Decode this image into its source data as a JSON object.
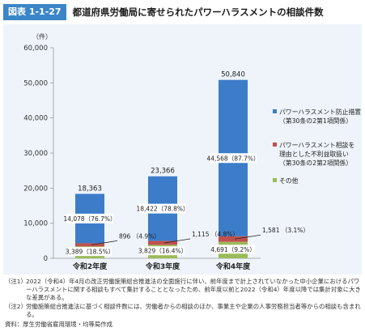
{
  "figure": {
    "label": "図表 1-1-27",
    "title": "都道府県労働局に寄せられたパワーハラスメントの相談件数"
  },
  "colors": {
    "header_accent": "#3a86c8",
    "panel_bg": "#eef4fa",
    "blue": "#3d7cc9",
    "red": "#c0504d",
    "green": "#9bbb59"
  },
  "chart_data": {
    "type": "bar",
    "stacked": true,
    "unit_label": "（件）",
    "ylim": [
      0,
      60000
    ],
    "y_ticks": [
      "0",
      "10,000",
      "20,000",
      "30,000",
      "40,000",
      "50,000",
      "60,000"
    ],
    "y_tick_values": [
      0,
      10000,
      20000,
      30000,
      40000,
      50000,
      60000
    ],
    "categories": [
      "令和2年度",
      "令和3年度",
      "令和4年度"
    ],
    "series": [
      {
        "name": "その他",
        "color": "#9bbb59",
        "values": [
          3389,
          3829,
          4691
        ],
        "labels": [
          "3,389（18.5%）",
          "3,829（16.4%）",
          "4,691（9.2%）"
        ]
      },
      {
        "name": "パワーハラスメント相談を理由とした不利益取扱い（第30条の2第2項関係）",
        "color": "#c0504d",
        "values": [
          896,
          1115,
          1581
        ],
        "labels": [
          "896 （4.9%）",
          "1,115 （4.8%）",
          "1,581 （3.1%）"
        ]
      },
      {
        "name": "パワーハラスメント防止措置（第30条の2第1項関係）",
        "color": "#3d7cc9",
        "values": [
          14078,
          18422,
          44568
        ],
        "labels": [
          "14,078（76.7%）",
          "18,422（78.8%）",
          "44,568（87.7%）"
        ]
      }
    ],
    "totals": [
      18363,
      23366,
      50840
    ],
    "total_labels": [
      "18,363",
      "23,366",
      "50,840"
    ],
    "legend": [
      {
        "lines": [
          "パワーハラスメント防止措置",
          "（第30条の2第1項関係）"
        ],
        "color": "#3d7cc9"
      },
      {
        "lines": [
          "パワーハラスメント相談を",
          "理由とした不利益取扱い",
          "（第30条の2第2項関係）"
        ],
        "color": "#c0504d"
      },
      {
        "lines": [
          "その他"
        ],
        "color": "#9bbb59"
      }
    ],
    "legend_position": "right"
  },
  "notes": [
    {
      "tag": "（注1）",
      "text": "2022（令和4）年4月の改正労働施策総合推進法の全面施行に伴い、前年度まで計上されていなかった中小企業におけるパワーハラスメントに関する相談もすべて集計することとなったため、前年度以前と2022（令和4）年度以降では集計対象に大きな差異がある。"
    },
    {
      "tag": "（注2）",
      "text": "労働施策総合推進法に基づく相談件数には、労働者からの相談のほか、事業主や企業の人事労務担当者等からの相談も含まれる。"
    }
  ],
  "source": "資料：厚生労働省雇用環境・均等局作成"
}
